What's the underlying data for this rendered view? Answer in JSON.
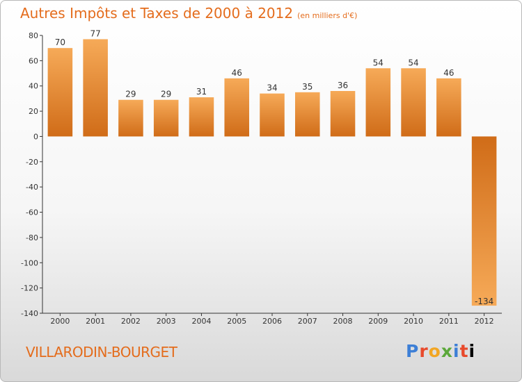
{
  "title": "Autres Impôts et Taxes de 2000 à 2012",
  "subtitle": "(en milliers d'€)",
  "commune": "VILLARODIN-BOURGET",
  "logo": [
    "P",
    "r",
    "o",
    "x",
    "i",
    "t",
    "i"
  ],
  "colors": {
    "accent": "#e46c1c",
    "bar_light": "#f6aa58",
    "bar_dark": "#d06c18"
  },
  "chart_data": {
    "type": "bar",
    "title": "Autres Impôts et Taxes de 2000 à 2012",
    "subtitle": "(en milliers d'€)",
    "categories": [
      "2000",
      "2001",
      "2002",
      "2003",
      "2004",
      "2005",
      "2006",
      "2007",
      "2008",
      "2009",
      "2010",
      "2011",
      "2012"
    ],
    "values": [
      70,
      77,
      29,
      29,
      31,
      46,
      34,
      35,
      36,
      54,
      54,
      46,
      -134
    ],
    "value_labels": [
      "70",
      "77",
      "29",
      "29",
      "31",
      "46",
      "34",
      "35",
      "36",
      "54",
      "54",
      "46",
      "-134"
    ],
    "ylim": [
      -140,
      80
    ],
    "yticks": [
      80,
      60,
      40,
      20,
      0,
      -20,
      -40,
      -60,
      -80,
      -100,
      -120,
      -140
    ],
    "ytick_labels": [
      "80",
      "60",
      "40",
      "20",
      "0",
      "-20",
      "-40",
      "-60",
      "-80",
      "-100",
      "-120",
      "-140"
    ],
    "grid": false,
    "legend": "none"
  }
}
